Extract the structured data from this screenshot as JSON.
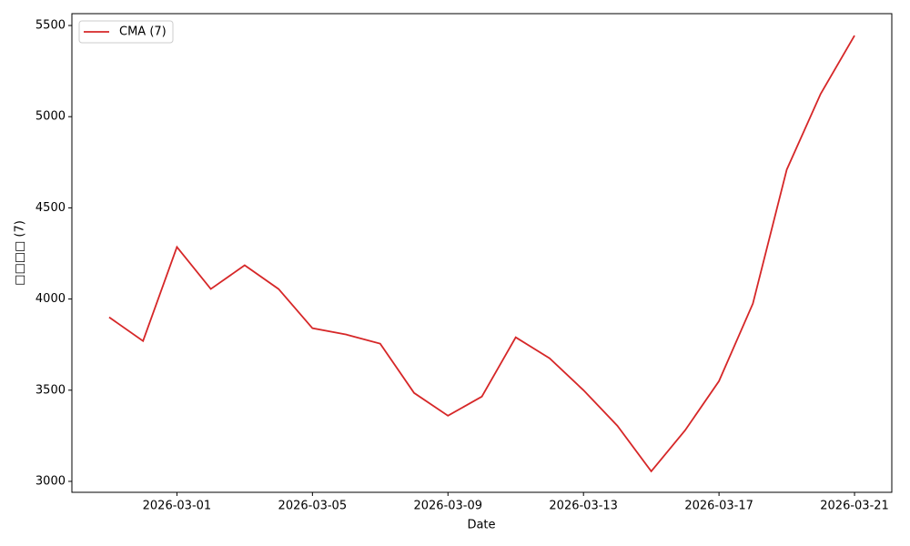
{
  "chart_data": {
    "type": "line",
    "x_label": "Date",
    "y_label": "□□□□ (7)",
    "x": [
      "2026-02-27",
      "2026-02-28",
      "2026-03-01",
      "2026-03-02",
      "2026-03-03",
      "2026-03-04",
      "2026-03-05",
      "2026-03-06",
      "2026-03-07",
      "2026-03-08",
      "2026-03-09",
      "2026-03-10",
      "2026-03-11",
      "2026-03-12",
      "2026-03-13",
      "2026-03-14",
      "2026-03-15",
      "2026-03-16",
      "2026-03-17",
      "2026-03-18",
      "2026-03-19",
      "2026-03-20",
      "2026-03-21"
    ],
    "series": [
      {
        "name": "CMA (7)",
        "color": "#d62728",
        "values": [
          3900,
          3770,
          4285,
          4055,
          4185,
          4055,
          3840,
          3805,
          3755,
          3485,
          3360,
          3465,
          3790,
          3675,
          3500,
          3305,
          3055,
          3280,
          3550,
          3975,
          4710,
          5125,
          5445
        ]
      }
    ],
    "xlim": [
      "2026-02-25T21:36",
      "2026-03-22T02:24"
    ],
    "xticks": [
      "2026-03-01",
      "2026-03-05",
      "2026-03-09",
      "2026-03-13",
      "2026-03-17",
      "2026-03-21"
    ],
    "ylim": [
      2940,
      5565
    ],
    "yticks": [
      3000,
      3500,
      4000,
      4500,
      5000,
      5500
    ],
    "grid": false,
    "legend": "upper-left"
  }
}
